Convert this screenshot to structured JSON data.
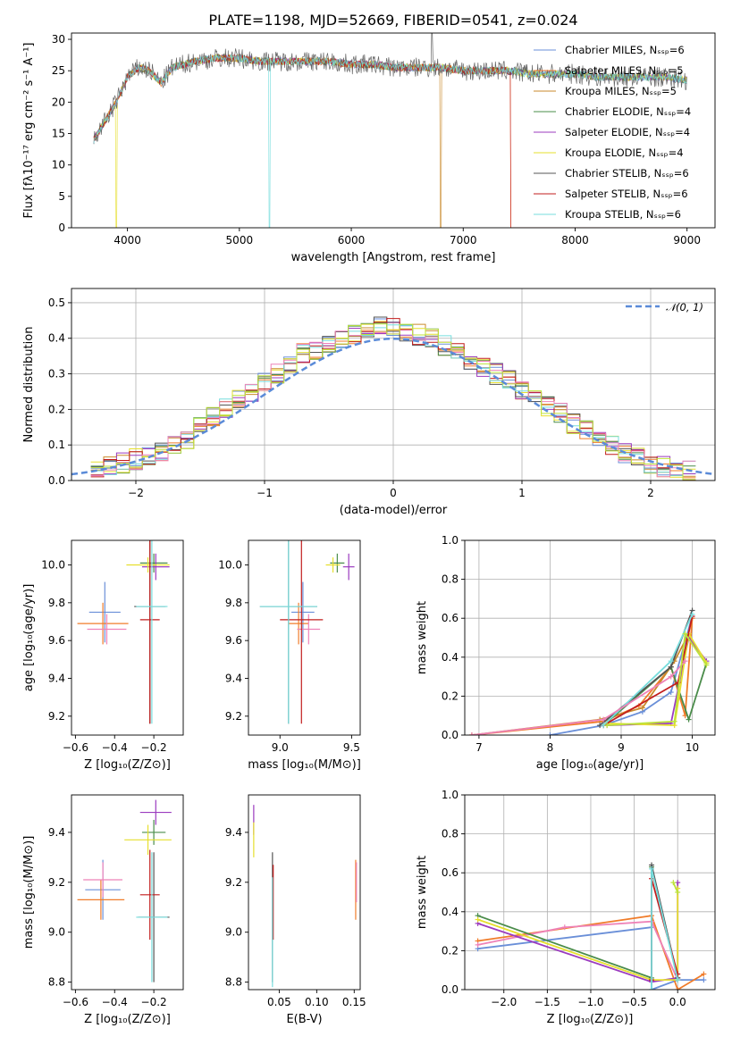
{
  "figure": {
    "title": "PLATE=1198, MJD=52669, FIBERID=0541, z=0.024"
  },
  "colors": [
    "#6a8fd8",
    "#f07c2a",
    "#c98a2b",
    "#4a8c4a",
    "#9b3bbf",
    "#e6df2e",
    "#555555",
    "#c21c1c",
    "#77dddd",
    "#ee82b8",
    "#bde33a"
  ],
  "chart_data": [
    {
      "id": "spectrum",
      "type": "line",
      "xlabel": "wavelength [Angstrom, rest frame]",
      "ylabel": "Flux [fλ10⁻¹⁷ erg cm⁻² s⁻¹ A⁻¹]",
      "xlim": [
        3500,
        9250
      ],
      "ylim": [
        0,
        31
      ],
      "xticks": [
        4000,
        5000,
        6000,
        7000,
        8000,
        9000
      ],
      "yticks": [
        0,
        5,
        10,
        15,
        20,
        25,
        30
      ],
      "grid": false,
      "legend_position": "top-right",
      "series": [
        {
          "name": "Chabrier MILES, Nₛₛₚ=6",
          "color": "#6a8fd8"
        },
        {
          "name": "Salpeter MILES, Nₛₛₚ=5",
          "color": "#f07c2a"
        },
        {
          "name": "Kroupa MILES, Nₛₛₚ=5",
          "color": "#c98a2b"
        },
        {
          "name": "Chabrier ELODIE, Nₛₛₚ=4",
          "color": "#4a8c4a"
        },
        {
          "name": "Salpeter ELODIE, Nₛₛₚ=4",
          "color": "#9b3bbf"
        },
        {
          "name": "Kroupa ELODIE, Nₛₛₚ=4",
          "color": "#e6df2e"
        },
        {
          "name": "Chabrier STELIB, Nₛₛₚ=6",
          "color": "#555555"
        },
        {
          "name": "Salpeter STELIB, Nₛₛₚ=6",
          "color": "#c21c1c"
        },
        {
          "name": "Kroupa STELIB, Nₛₛₚ=6",
          "color": "#77dddd"
        }
      ],
      "continuum": {
        "x": [
          3700,
          3800,
          3900,
          4000,
          4100,
          4200,
          4300,
          4400,
          4600,
          4800,
          5000,
          5200,
          5400,
          5600,
          5800,
          6000,
          6200,
          6400,
          6600,
          6800,
          7000,
          7200,
          7400,
          7600,
          7800,
          8000,
          8200,
          8400,
          8600,
          8800,
          9000
        ],
        "y": [
          14,
          17,
          20,
          24,
          25.5,
          25,
          23,
          25.5,
          26.5,
          27,
          27,
          26.5,
          26.5,
          26.5,
          26.5,
          26,
          26,
          25.5,
          25.5,
          25.5,
          25,
          25,
          25,
          24.5,
          24.5,
          24.5,
          24,
          24,
          24,
          24,
          23.5
        ]
      }
    },
    {
      "id": "residuals",
      "type": "line",
      "xlabel": "(data-model)/error",
      "ylabel": "Normed distribution",
      "xlim": [
        -2.5,
        2.5
      ],
      "ylim": [
        0,
        0.54
      ],
      "xticks": [
        -2,
        -1,
        0,
        1,
        2
      ],
      "yticks": [
        0.0,
        0.1,
        0.2,
        0.3,
        0.4,
        0.5
      ],
      "grid": true,
      "legend_position": "top-right",
      "legend_label": "𝒩(0, 1)",
      "bins_x": [
        -2.3,
        -2.2,
        -2.1,
        -2.0,
        -1.9,
        -1.8,
        -1.7,
        -1.6,
        -1.5,
        -1.4,
        -1.3,
        -1.2,
        -1.1,
        -1.0,
        -0.9,
        -0.8,
        -0.7,
        -0.6,
        -0.5,
        -0.4,
        -0.3,
        -0.2,
        -0.1,
        0.0,
        0.1,
        0.2,
        0.3,
        0.4,
        0.5,
        0.6,
        0.7,
        0.8,
        0.9,
        1.0,
        1.1,
        1.2,
        1.3,
        1.4,
        1.5,
        1.6,
        1.7,
        1.8,
        1.9,
        2.0,
        2.1,
        2.2,
        2.3
      ],
      "hist_values": [
        0.03,
        0.04,
        0.05,
        0.06,
        0.07,
        0.08,
        0.1,
        0.12,
        0.15,
        0.18,
        0.2,
        0.23,
        0.25,
        0.28,
        0.3,
        0.33,
        0.36,
        0.37,
        0.38,
        0.4,
        0.41,
        0.42,
        0.43,
        0.43,
        0.42,
        0.41,
        0.4,
        0.38,
        0.36,
        0.34,
        0.32,
        0.3,
        0.28,
        0.25,
        0.23,
        0.21,
        0.19,
        0.16,
        0.14,
        0.12,
        0.1,
        0.08,
        0.07,
        0.05,
        0.04,
        0.03,
        0.025
      ]
    },
    {
      "id": "age-vs-Z",
      "type": "scatter",
      "xlabel": "Z [log₁₀(Z/Z⊙)]",
      "ylabel": "age  [log₁₀(age/yr)]",
      "xlim": [
        -0.62,
        -0.05
      ],
      "ylim": [
        9.1,
        10.13
      ],
      "xticks": [
        -0.6,
        -0.4,
        -0.2
      ],
      "yticks": [
        9.2,
        9.4,
        9.6,
        9.8,
        10.0
      ],
      "points": [
        {
          "x": -0.45,
          "y": 9.75,
          "xerr": 0.08,
          "yerr": 0.16,
          "color": "#6a8fd8"
        },
        {
          "x": -0.46,
          "y": 9.69,
          "xerr": 0.13,
          "yerr": 0.11,
          "color": "#f07c2a"
        },
        {
          "x": -0.44,
          "y": 9.66,
          "xerr": 0.1,
          "yerr": 0.08,
          "color": "#ee82b8"
        },
        {
          "x": -0.2,
          "y": 10.01,
          "xerr": 0.07,
          "yerr": 0.05,
          "color": "#4a8c4a"
        },
        {
          "x": -0.19,
          "y": 9.99,
          "xerr": 0.07,
          "yerr": 0.07,
          "color": "#9b3bbf"
        },
        {
          "x": -0.23,
          "y": 10.0,
          "xerr": 0.11,
          "yerr": 0.04,
          "color": "#e6df2e"
        },
        {
          "x": -0.22,
          "y": 9.78,
          "xerr": 0.08,
          "yerr": 0.62,
          "color": "#555555"
        },
        {
          "x": -0.22,
          "y": 9.71,
          "xerr": 0.05,
          "yerr": 0.55,
          "color": "#c21c1c"
        },
        {
          "x": -0.21,
          "y": 9.78,
          "xerr": 0.08,
          "yerr": 0.62,
          "color": "#77dddd"
        }
      ]
    },
    {
      "id": "age-vs-mass",
      "type": "scatter",
      "xlabel": "mass [log₁₀(M/M⊙)]",
      "ylabel": "",
      "xlim": [
        8.78,
        9.56
      ],
      "ylim": [
        9.1,
        10.13
      ],
      "xticks": [
        9.0,
        9.5
      ],
      "yticks": [
        9.2,
        9.4,
        9.6,
        9.8,
        10.0
      ],
      "points": [
        {
          "x": 9.16,
          "y": 9.75,
          "xerr": 0.08,
          "yerr": 0.16,
          "color": "#6a8fd8"
        },
        {
          "x": 9.13,
          "y": 9.69,
          "xerr": 0.07,
          "yerr": 0.11,
          "color": "#f07c2a"
        },
        {
          "x": 9.2,
          "y": 9.66,
          "xerr": 0.08,
          "yerr": 0.08,
          "color": "#ee82b8"
        },
        {
          "x": 9.4,
          "y": 10.01,
          "xerr": 0.05,
          "yerr": 0.05,
          "color": "#4a8c4a"
        },
        {
          "x": 9.48,
          "y": 9.99,
          "xerr": 0.04,
          "yerr": 0.07,
          "color": "#9b3bbf"
        },
        {
          "x": 9.37,
          "y": 10.0,
          "xerr": 0.05,
          "yerr": 0.04,
          "color": "#e6df2e"
        },
        {
          "x": 9.06,
          "y": 9.78,
          "xerr": 0.2,
          "yerr": 0.62,
          "color": "#555555"
        },
        {
          "x": 9.15,
          "y": 9.71,
          "xerr": 0.15,
          "yerr": 0.55,
          "color": "#c21c1c"
        },
        {
          "x": 9.06,
          "y": 9.78,
          "xerr": 0.2,
          "yerr": 0.62,
          "color": "#77dddd"
        }
      ]
    },
    {
      "id": "mass-weight-vs-age",
      "type": "line",
      "xlabel": "age  [log₁₀(age/yr)]",
      "ylabel": "mass weight",
      "xlim": [
        6.8,
        10.32
      ],
      "ylim": [
        0,
        1.0
      ],
      "xticks": [
        7,
        8,
        9,
        10
      ],
      "yticks": [
        0.0,
        0.2,
        0.4,
        0.6,
        0.8,
        1.0
      ],
      "grid": true,
      "series": [
        {
          "color": "#6a8fd8",
          "x": [
            8.0,
            8.75,
            9.3,
            9.7,
            10.0
          ],
          "y": [
            0.0,
            0.05,
            0.12,
            0.22,
            0.61
          ]
        },
        {
          "color": "#f07c2a",
          "x": [
            6.9,
            8.75,
            9.25,
            9.7,
            9.9,
            10.0
          ],
          "y": [
            0.0,
            0.07,
            0.15,
            0.35,
            0.1,
            0.6
          ]
        },
        {
          "color": "#c98a2b",
          "x": [
            6.9,
            8.7,
            9.3,
            9.75,
            9.95
          ],
          "y": [
            0.0,
            0.08,
            0.14,
            0.38,
            0.52
          ]
        },
        {
          "color": "#4a8c4a",
          "x": [
            8.75,
            9.7,
            9.95,
            10.2
          ],
          "y": [
            0.05,
            0.35,
            0.08,
            0.37
          ]
        },
        {
          "color": "#9b3bbf",
          "x": [
            8.8,
            9.7,
            9.95,
            10.2
          ],
          "y": [
            0.05,
            0.06,
            0.5,
            0.38
          ]
        },
        {
          "color": "#e6df2e",
          "x": [
            8.8,
            9.75,
            9.95,
            10.2
          ],
          "y": [
            0.06,
            0.05,
            0.52,
            0.37
          ]
        },
        {
          "color": "#555555",
          "x": [
            8.7,
            9.7,
            10.0
          ],
          "y": [
            0.05,
            0.35,
            0.64
          ]
        },
        {
          "color": "#c21c1c",
          "x": [
            8.75,
            9.8,
            10.0
          ],
          "y": [
            0.05,
            0.27,
            0.61
          ]
        },
        {
          "color": "#77dddd",
          "x": [
            8.75,
            9.7,
            10.0
          ],
          "y": [
            0.05,
            0.38,
            0.62
          ]
        },
        {
          "color": "#ee82b8",
          "x": [
            6.9,
            8.75,
            9.7,
            9.9
          ],
          "y": [
            0.0,
            0.08,
            0.3,
            0.38
          ]
        },
        {
          "color": "#bde33a",
          "x": [
            8.8,
            9.75,
            9.9,
            10.2
          ],
          "y": [
            0.05,
            0.07,
            0.52,
            0.36
          ]
        }
      ]
    },
    {
      "id": "mass-vs-Z",
      "type": "scatter",
      "xlabel": "Z [log₁₀(Z/Z⊙)]",
      "ylabel": "mass [log₁₀(M/M⊙)]",
      "xlim": [
        -0.62,
        -0.05
      ],
      "ylim": [
        8.77,
        9.55
      ],
      "xticks": [
        -0.6,
        -0.4,
        -0.2
      ],
      "yticks": [
        8.8,
        9.0,
        9.2,
        9.4
      ],
      "points": [
        {
          "x": -0.46,
          "y": 9.17,
          "xerr": 0.09,
          "yerr": 0.12,
          "color": "#6a8fd8"
        },
        {
          "x": -0.47,
          "y": 9.13,
          "xerr": 0.12,
          "yerr": 0.08,
          "color": "#f07c2a"
        },
        {
          "x": -0.46,
          "y": 9.21,
          "xerr": 0.1,
          "yerr": 0.07,
          "color": "#ee82b8"
        },
        {
          "x": -0.2,
          "y": 9.4,
          "xerr": 0.06,
          "yerr": 0.05,
          "color": "#4a8c4a"
        },
        {
          "x": -0.19,
          "y": 9.48,
          "xerr": 0.08,
          "yerr": 0.05,
          "color": "#9b3bbf"
        },
        {
          "x": -0.23,
          "y": 9.37,
          "xerr": 0.12,
          "yerr": 0.06,
          "color": "#e6df2e"
        },
        {
          "x": -0.2,
          "y": 9.06,
          "xerr": 0.08,
          "yerr": 0.26,
          "color": "#555555"
        },
        {
          "x": -0.22,
          "y": 9.15,
          "xerr": 0.05,
          "yerr": 0.18,
          "color": "#c21c1c"
        },
        {
          "x": -0.21,
          "y": 9.06,
          "xerr": 0.08,
          "yerr": 0.26,
          "color": "#77dddd"
        }
      ]
    },
    {
      "id": "mass-vs-EBV",
      "type": "scatter",
      "xlabel": "E(B-V)",
      "ylabel": "",
      "xlim": [
        0.009,
        0.158
      ],
      "ylim": [
        8.77,
        9.55
      ],
      "xticks": [
        0.05,
        0.1,
        0.15
      ],
      "xtick_labels": [
        "0.05",
        "0.10",
        "0.15"
      ],
      "yticks": [
        8.8,
        9.0,
        9.2,
        9.4
      ],
      "points": [
        {
          "x": 0.016,
          "y": 9.45,
          "xerr": 0,
          "yerr": 0.06,
          "color": "#9b3bbf"
        },
        {
          "x": 0.016,
          "y": 9.37,
          "xerr": 0,
          "yerr": 0.07,
          "color": "#e6df2e"
        },
        {
          "x": 0.041,
          "y": 9.06,
          "xerr": 0,
          "yerr": 0.26,
          "color": "#555555"
        },
        {
          "x": 0.042,
          "y": 9.12,
          "xerr": 0,
          "yerr": 0.15,
          "color": "#c21c1c"
        },
        {
          "x": 0.041,
          "y": 9.0,
          "xerr": 0,
          "yerr": 0.22,
          "color": "#77dddd"
        },
        {
          "x": 0.152,
          "y": 9.17,
          "xerr": 0,
          "yerr": 0.12,
          "color": "#f07c2a"
        },
        {
          "x": 0.153,
          "y": 9.2,
          "xerr": 0,
          "yerr": 0.08,
          "color": "#ee82b8"
        }
      ]
    },
    {
      "id": "mass-weight-vs-Z",
      "type": "line",
      "xlabel": "Z [log₁₀(Z/Z⊙)]",
      "ylabel": "mass weight",
      "xlim": [
        -2.45,
        0.43
      ],
      "ylim": [
        0,
        1.0
      ],
      "xticks": [
        -2.0,
        -1.5,
        -1.0,
        -0.5,
        0.0
      ],
      "yticks": [
        0.0,
        0.2,
        0.4,
        0.6,
        0.8,
        1.0
      ],
      "grid": true,
      "series": [
        {
          "color": "#6a8fd8",
          "x": [
            -2.3,
            -0.3,
            -0.3,
            0.0,
            0.3
          ],
          "y": [
            0.21,
            0.32,
            0.0,
            0.05,
            0.05
          ]
        },
        {
          "color": "#f07c2a",
          "x": [
            -2.3,
            -0.3,
            0.0,
            0.3
          ],
          "y": [
            0.25,
            0.38,
            0.0,
            0.08
          ]
        },
        {
          "color": "#ee82b8",
          "x": [
            -2.3,
            -1.3,
            -0.3,
            0.0
          ],
          "y": [
            0.23,
            0.32,
            0.35,
            0.05
          ]
        },
        {
          "color": "#4a8c4a",
          "x": [
            -2.3,
            -0.3,
            -0.3,
            0.0
          ],
          "y": [
            0.38,
            0.06,
            0.63,
            0.06
          ]
        },
        {
          "color": "#9b3bbf",
          "x": [
            -2.3,
            -0.3,
            0.0,
            0.0
          ],
          "y": [
            0.34,
            0.04,
            0.06,
            0.55
          ]
        },
        {
          "color": "#e6df2e",
          "x": [
            -2.3,
            -0.3,
            0.0,
            0.0
          ],
          "y": [
            0.36,
            0.05,
            0.05,
            0.52
          ]
        },
        {
          "color": "#555555",
          "x": [
            -0.3,
            -0.3,
            0.0
          ],
          "y": [
            0.05,
            0.64,
            0.06
          ]
        },
        {
          "color": "#c21c1c",
          "x": [
            -0.3,
            -0.3,
            0.0
          ],
          "y": [
            0.05,
            0.57,
            0.08
          ]
        },
        {
          "color": "#77dddd",
          "x": [
            -0.3,
            -0.3,
            0.0
          ],
          "y": [
            0.0,
            0.62,
            0.05
          ]
        },
        {
          "color": "#bde33a",
          "x": [
            -0.05,
            0.0
          ],
          "y": [
            0.55,
            0.5
          ]
        }
      ]
    }
  ]
}
